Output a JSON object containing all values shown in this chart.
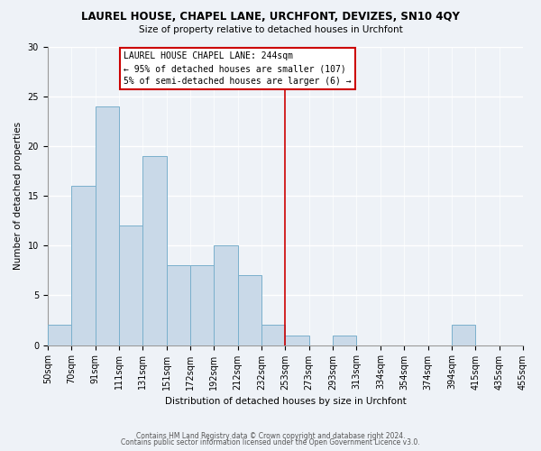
{
  "title": "LAUREL HOUSE, CHAPEL LANE, URCHFONT, DEVIZES, SN10 4QY",
  "subtitle": "Size of property relative to detached houses in Urchfont",
  "xlabel": "Distribution of detached houses by size in Urchfont",
  "ylabel": "Number of detached properties",
  "footer_line1": "Contains HM Land Registry data © Crown copyright and database right 2024.",
  "footer_line2": "Contains public sector information licensed under the Open Government Licence v3.0.",
  "bin_labels": [
    "50sqm",
    "70sqm",
    "91sqm",
    "111sqm",
    "131sqm",
    "151sqm",
    "172sqm",
    "192sqm",
    "212sqm",
    "232sqm",
    "253sqm",
    "273sqm",
    "293sqm",
    "313sqm",
    "334sqm",
    "354sqm",
    "374sqm",
    "394sqm",
    "415sqm",
    "435sqm",
    "455sqm"
  ],
  "bar_values": [
    2,
    16,
    24,
    12,
    19,
    8,
    8,
    10,
    7,
    2,
    1,
    0,
    1,
    0,
    0,
    0,
    0,
    2,
    0,
    0
  ],
  "bar_color": "#c9d9e8",
  "bar_edge_color": "#7ab0cc",
  "property_label": "LAUREL HOUSE CHAPEL LANE: 244sqm",
  "annotation_line1": "← 95% of detached houses are smaller (107)",
  "annotation_line2": "5% of semi-detached houses are larger (6) →",
  "vline_color": "#cc0000",
  "annotation_box_color": "#ffffff",
  "annotation_box_edge": "#cc0000",
  "ylim": [
    0,
    30
  ],
  "yticks": [
    0,
    5,
    10,
    15,
    20,
    25,
    30
  ],
  "background_color": "#eef2f7",
  "grid_color": "#ffffff",
  "title_fontsize": 8.5,
  "subtitle_fontsize": 7.5,
  "axis_label_fontsize": 7.5,
  "tick_fontsize": 7.0,
  "annotation_fontsize": 7.0,
  "footer_fontsize": 5.5
}
